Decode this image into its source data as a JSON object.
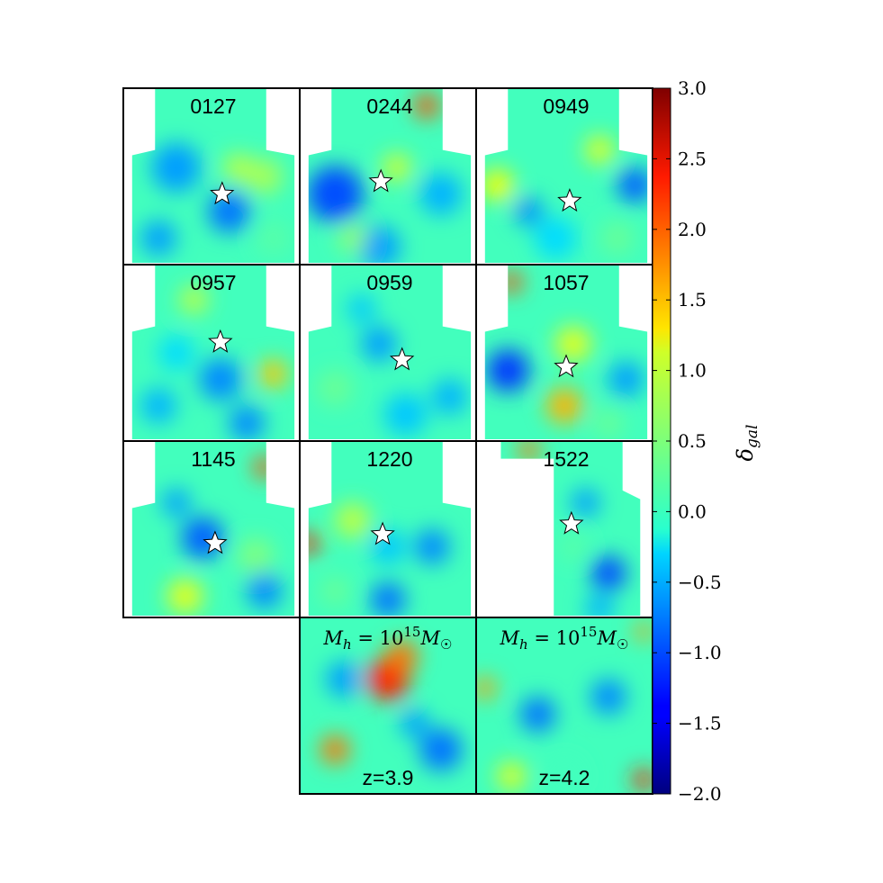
{
  "chart_data": {
    "type": "heatmap",
    "colormap": "jet",
    "value_range": [
      -2.0,
      3.0
    ],
    "colorbar": {
      "label": "δgal",
      "label_parts": {
        "symbol": "δ",
        "subscript": "gal"
      },
      "ticks": [
        "3.0",
        "2.5",
        "2.0",
        "1.5",
        "1.0",
        "0.5",
        "0.0",
        "−0.5",
        "−1.0",
        "−1.5",
        "−2.0"
      ],
      "tick_values": [
        3.0,
        2.5,
        2.0,
        1.5,
        1.0,
        0.5,
        0.0,
        -0.5,
        -1.0,
        -1.5,
        -2.0
      ]
    },
    "panels": [
      {
        "label": "0127",
        "has_star": true
      },
      {
        "label": "0244",
        "has_star": true
      },
      {
        "label": "0949",
        "has_star": true
      },
      {
        "label": "0957",
        "has_star": true
      },
      {
        "label": "0959",
        "has_star": true
      },
      {
        "label": "1057",
        "has_star": true
      },
      {
        "label": "1145",
        "has_star": true
      },
      {
        "label": "1220",
        "has_star": true
      },
      {
        "label": "1522",
        "has_star": true
      },
      {
        "label": "z=3.9",
        "annotation": "Mh = 10^15 M☉",
        "has_star": false
      },
      {
        "label": "z=4.2",
        "annotation": "Mh = 10^15 M☉",
        "has_star": false
      }
    ]
  }
}
